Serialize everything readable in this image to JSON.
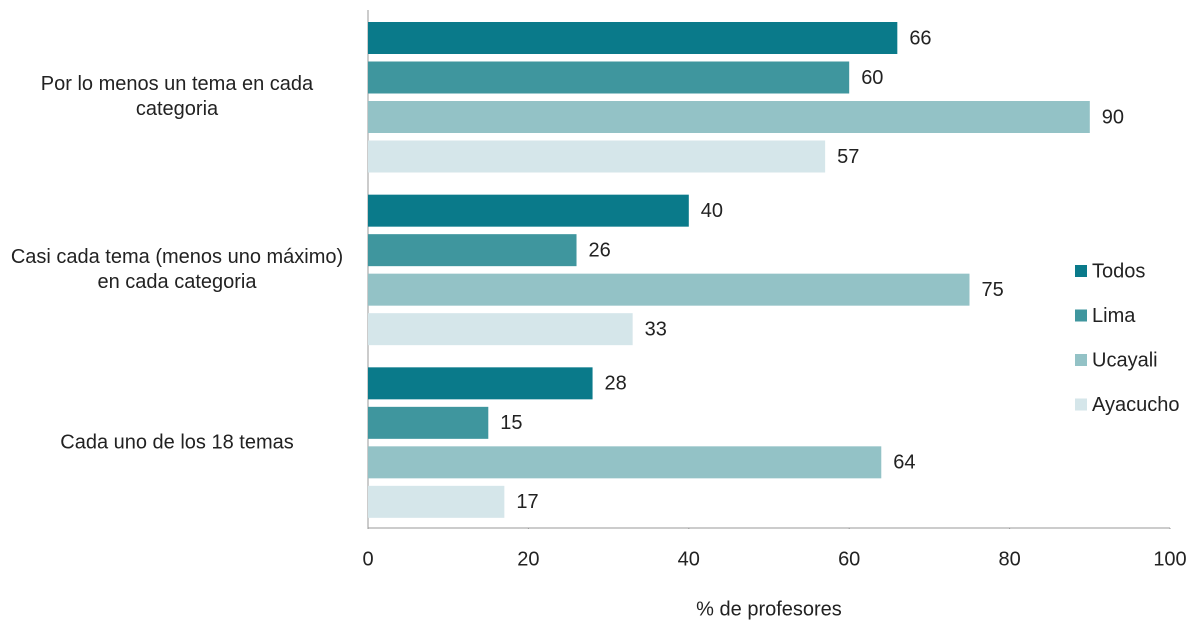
{
  "chart_data": {
    "type": "bar",
    "orientation": "horizontal",
    "x_label": "% de profesores",
    "categories": [
      "Por lo menos un tema en cada categoria",
      "Casi cada tema (menos uno máximo) en cada categoria",
      "Cada uno de los 18 temas"
    ],
    "series": [
      {
        "name": "Todos",
        "color": "#0a7a8a",
        "values": [
          66,
          40,
          28
        ]
      },
      {
        "name": "Lima",
        "color": "#3f969e",
        "values": [
          60,
          26,
          15
        ]
      },
      {
        "name": "Ucayali",
        "color": "#93c2c6",
        "values": [
          90,
          75,
          64
        ]
      },
      {
        "name": "Ayacucho",
        "color": "#d5e6ea",
        "values": [
          57,
          33,
          17
        ]
      }
    ],
    "xlim": [
      0,
      100
    ],
    "xticks": [
      0,
      20,
      40,
      60,
      80,
      100
    ],
    "grid": false,
    "legend": "right"
  }
}
